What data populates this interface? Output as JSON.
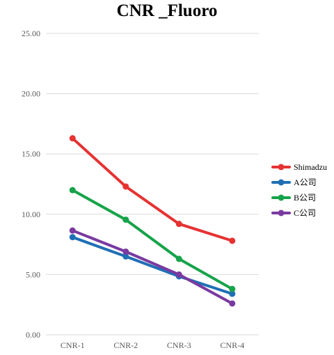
{
  "chart_data": {
    "type": "line",
    "title": "CNR _Fluoro",
    "xlabel": "",
    "ylabel": "",
    "categories": [
      "CNR-1",
      "CNR-2",
      "CNR-3",
      "CNR-4"
    ],
    "ylim": [
      0,
      25
    ],
    "yticks": [
      "0.00",
      "5.00",
      "10.00",
      "15.00",
      "20.00",
      "25.00"
    ],
    "grid": true,
    "legend_position": "right",
    "series": [
      {
        "name": "Shimadzu",
        "color": "#e63232",
        "values": [
          16.3,
          12.3,
          9.2,
          7.8
        ]
      },
      {
        "name": "A公司",
        "color": "#1f6fb5",
        "values": [
          8.1,
          6.5,
          4.85,
          3.4
        ]
      },
      {
        "name": "B公司",
        "color": "#16a34a",
        "values": [
          12.0,
          9.55,
          6.3,
          3.8
        ]
      },
      {
        "name": "C公司",
        "color": "#7a3aa0",
        "values": [
          8.65,
          6.9,
          5.0,
          2.6
        ]
      }
    ]
  }
}
